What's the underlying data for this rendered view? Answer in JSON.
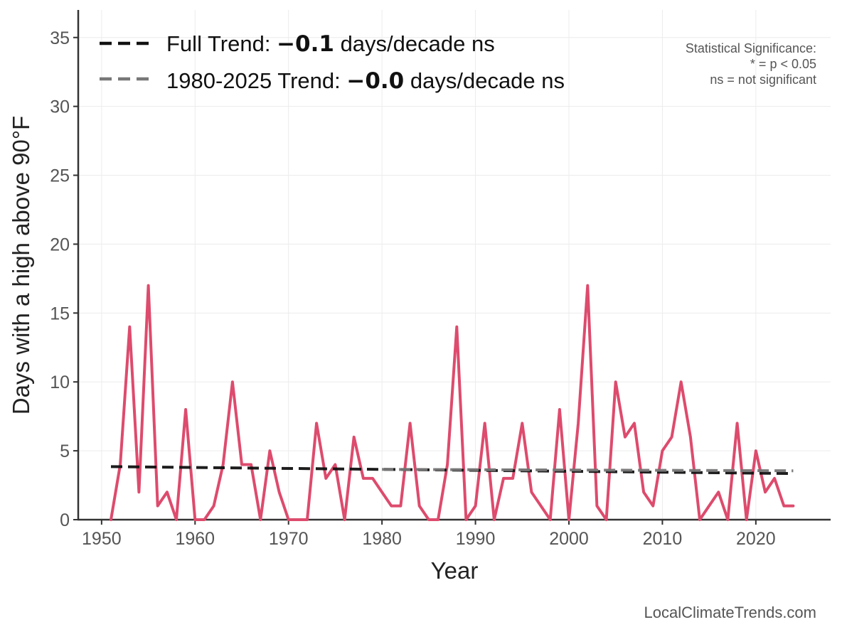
{
  "chart_data": {
    "type": "line",
    "xlabel": "Year",
    "ylabel": "Days with a high above 90°F",
    "xlim": [
      1947.5,
      2028
    ],
    "ylim": [
      0,
      37
    ],
    "xticks": [
      1950,
      1960,
      1970,
      1980,
      1990,
      2000,
      2010,
      2020
    ],
    "yticks": [
      0,
      5,
      10,
      15,
      20,
      25,
      30,
      35
    ],
    "grid": true,
    "series": [
      {
        "color": "#dd4b6d",
        "x": [
          1951,
          1952,
          1953,
          1954,
          1955,
          1956,
          1957,
          1958,
          1959,
          1960,
          1961,
          1962,
          1963,
          1964,
          1965,
          1966,
          1967,
          1968,
          1969,
          1970,
          1971,
          1972,
          1973,
          1974,
          1975,
          1976,
          1977,
          1978,
          1979,
          1980,
          1981,
          1982,
          1983,
          1984,
          1985,
          1986,
          1987,
          1988,
          1989,
          1990,
          1991,
          1992,
          1993,
          1994,
          1995,
          1996,
          1997,
          1998,
          1999,
          2000,
          2001,
          2002,
          2003,
          2004,
          2005,
          2006,
          2007,
          2008,
          2009,
          2010,
          2011,
          2012,
          2013,
          2014,
          2015,
          2016,
          2017,
          2018,
          2019,
          2020,
          2021,
          2022,
          2023,
          2024
        ],
        "y": [
          0,
          4,
          14,
          2,
          17,
          1,
          2,
          0,
          8,
          0,
          0,
          1,
          4,
          10,
          4,
          4,
          0,
          5,
          2,
          0,
          0,
          0,
          7,
          3,
          4,
          0,
          6,
          3,
          3,
          2,
          1,
          1,
          7,
          1,
          0,
          0,
          4,
          14,
          0,
          1,
          7,
          0,
          3,
          3,
          7,
          2,
          1,
          0,
          8,
          0,
          7,
          17,
          1,
          0,
          10,
          6,
          7,
          2,
          1,
          5,
          6,
          10,
          6,
          0,
          1,
          2,
          0,
          7,
          0,
          5,
          2,
          3,
          1,
          1
        ]
      }
    ],
    "trends": [
      {
        "name": "Full Trend",
        "x": [
          1951,
          2024
        ],
        "y": [
          3.85,
          3.35
        ],
        "color": "#111111",
        "legend_prefix": "Full Trend: ",
        "legend_value": "−0.1",
        "legend_suffix": " days/decade ns"
      },
      {
        "name": "1980-2025 Trend",
        "x": [
          1980,
          2024
        ],
        "y": [
          3.65,
          3.55
        ],
        "color": "#777777",
        "legend_prefix": "1980-2025 Trend: ",
        "legend_value": "−0.0",
        "legend_suffix": " days/decade ns"
      }
    ],
    "legend_position": "top-left",
    "annotation": {
      "line1": "Statistical Significance:",
      "line2": "* = p < 0.05",
      "line3": "ns = not significant"
    },
    "credit": "LocalClimateTrends.com"
  }
}
